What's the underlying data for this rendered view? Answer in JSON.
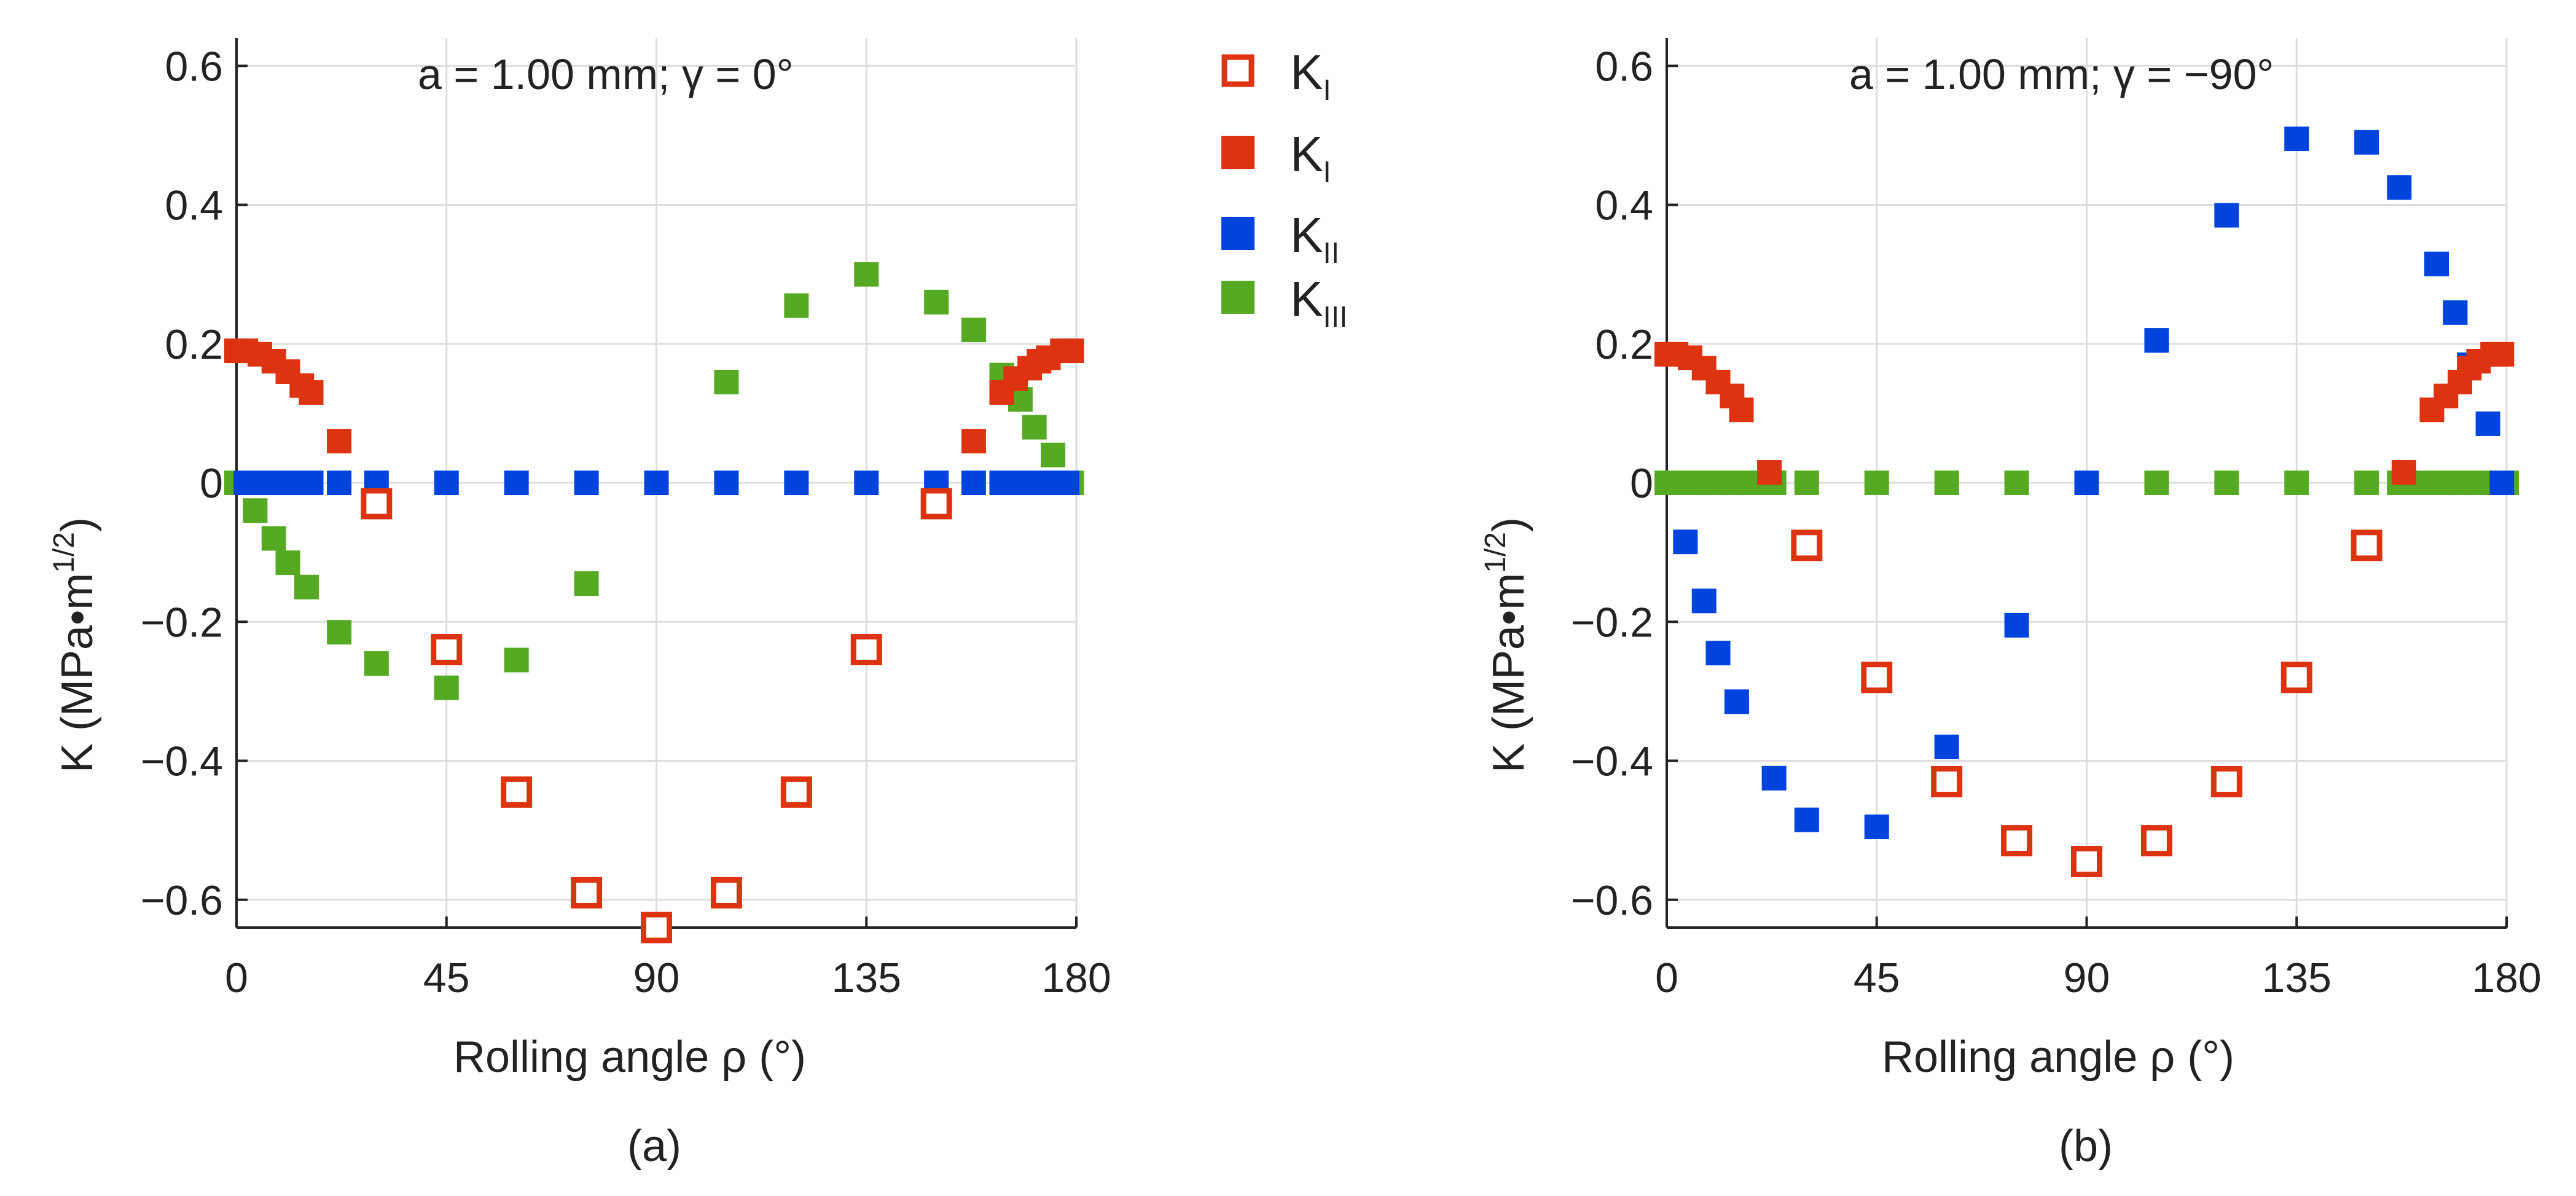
{
  "figure": {
    "panel_labels": [
      "(a)",
      "(b)"
    ]
  },
  "colors": {
    "KI_open": "#dd3311",
    "KI_filled": "#dd3311",
    "KII": "#0044dd",
    "KIII": "#55aa22",
    "grid": "#dddddd",
    "axis": "#222222"
  },
  "legend": {
    "items": [
      {
        "base": "K",
        "sub": "I",
        "marker": "open-square",
        "color": "#dd3311",
        "icon": "open-square-icon"
      },
      {
        "base": "K",
        "sub": "I",
        "marker": "filled-square",
        "color": "#dd3311",
        "icon": "red-square-icon"
      },
      {
        "base": "K",
        "sub": "II",
        "marker": "filled-square",
        "color": "#0044dd",
        "icon": "blue-square-icon"
      },
      {
        "base": "K",
        "sub": "III",
        "marker": "filled-square",
        "color": "#55aa22",
        "icon": "green-square-icon"
      }
    ]
  },
  "chart_data": [
    {
      "type": "scatter",
      "panel": "(a)",
      "annotation": "a = 1.00 mm; γ  = 0°",
      "xlabel": "Rolling angle ρ  (°)",
      "ylabel": "K (MPa•m",
      "ylabel_sup": "1/2",
      "ylabel_end": ")",
      "xlim": [
        0,
        180
      ],
      "ylim": [
        -0.64,
        0.64
      ],
      "xticks": [
        0,
        45,
        90,
        135,
        180
      ],
      "xtick_labels": [
        "0",
        "45",
        "90",
        "135",
        "180"
      ],
      "yticks": [
        0.6,
        0.4,
        0.2,
        0,
        -0.2,
        -0.4,
        -0.6
      ],
      "ytick_labels": [
        "0.6",
        "0.4",
        "0.2",
        "0",
        "−0.2",
        "−0.4",
        "−0.6"
      ],
      "grid": true,
      "series": [
        {
          "name": "KI open",
          "marker": "open",
          "color": "#dd3311",
          "x": [
            30,
            45,
            60,
            75,
            90,
            105,
            120,
            135,
            150
          ],
          "y": [
            -0.03,
            -0.24,
            -0.445,
            -0.59,
            -0.64,
            -0.59,
            -0.445,
            -0.24,
            -0.03
          ]
        },
        {
          "name": "KI filled",
          "marker": "filled",
          "color": "#dd3311",
          "x": [
            0,
            2,
            5,
            8,
            11,
            14,
            16,
            22,
            158,
            164,
            167,
            170,
            172,
            174,
            177,
            179
          ],
          "y": [
            0.19,
            0.19,
            0.185,
            0.175,
            0.16,
            0.14,
            0.13,
            0.06,
            0.06,
            0.13,
            0.15,
            0.165,
            0.175,
            0.18,
            0.19,
            0.19
          ]
        },
        {
          "name": "KII",
          "marker": "filled",
          "color": "#0044dd",
          "x": [
            2,
            5,
            8,
            11,
            14,
            16,
            22,
            30,
            45,
            60,
            75,
            90,
            105,
            120,
            135,
            150,
            158,
            164,
            167,
            170,
            172,
            175,
            178
          ],
          "y": [
            0,
            0,
            0,
            0,
            0,
            0,
            0,
            0,
            0,
            0,
            0,
            0,
            0,
            0,
            0,
            0,
            0,
            0,
            0,
            0,
            0,
            0,
            0
          ]
        },
        {
          "name": "KIII",
          "marker": "filled",
          "color": "#55aa22",
          "x": [
            0,
            4,
            8,
            11,
            15,
            22,
            30,
            45,
            60,
            75,
            90,
            105,
            120,
            135,
            150,
            158,
            164,
            168,
            171,
            175,
            179
          ],
          "y": [
            0,
            -0.04,
            -0.08,
            -0.115,
            -0.15,
            -0.215,
            -0.26,
            -0.295,
            -0.255,
            -0.145,
            0,
            0.145,
            0.255,
            0.3,
            0.26,
            0.22,
            0.155,
            0.12,
            0.08,
            0.04,
            0
          ]
        }
      ]
    },
    {
      "type": "scatter",
      "panel": "(b)",
      "annotation": "a = 1.00 mm; γ  = −90°",
      "xlabel": "Rolling angle ρ  (°)",
      "ylabel": "K (MPa•m",
      "ylabel_sup": "1/2",
      "ylabel_end": ")",
      "xlim": [
        0,
        180
      ],
      "ylim": [
        -0.64,
        0.64
      ],
      "xticks": [
        0,
        45,
        90,
        135,
        180
      ],
      "xtick_labels": [
        "0",
        "45",
        "90",
        "135",
        "180"
      ],
      "yticks": [
        0.6,
        0.4,
        0.2,
        0,
        -0.2,
        -0.4,
        -0.6
      ],
      "ytick_labels": [
        "0.6",
        "0.4",
        "0.2",
        "0",
        "−0.2",
        "−0.4",
        "−0.6"
      ],
      "grid": true,
      "series": [
        {
          "name": "KI open",
          "marker": "open",
          "color": "#dd3311",
          "x": [
            30,
            45,
            60,
            75,
            90,
            105,
            120,
            135,
            150
          ],
          "y": [
            -0.09,
            -0.28,
            -0.43,
            -0.515,
            -0.545,
            -0.515,
            -0.43,
            -0.28,
            -0.09
          ]
        },
        {
          "name": "KI filled",
          "marker": "filled",
          "color": "#dd3311",
          "x": [
            0,
            2,
            5,
            8,
            11,
            14,
            16,
            22,
            158,
            164,
            167,
            170,
            172,
            174,
            177,
            179
          ],
          "y": [
            0.185,
            0.185,
            0.18,
            0.165,
            0.145,
            0.125,
            0.105,
            0.015,
            0.015,
            0.105,
            0.125,
            0.145,
            0.165,
            0.175,
            0.185,
            0.185
          ]
        },
        {
          "name": "KII",
          "marker": "filled",
          "color": "#0044dd",
          "x": [
            4,
            8,
            11,
            15,
            23,
            30,
            45,
            60,
            75,
            90,
            105,
            120,
            135,
            150,
            157,
            165,
            169,
            172,
            176,
            179
          ],
          "y": [
            -0.085,
            -0.17,
            -0.245,
            -0.315,
            -0.425,
            -0.485,
            -0.495,
            -0.38,
            -0.205,
            0,
            0.205,
            0.385,
            0.495,
            0.49,
            0.425,
            0.315,
            0.245,
            0.17,
            0.085,
            0
          ]
        },
        {
          "name": "KIII",
          "marker": "filled",
          "color": "#55aa22",
          "x": [
            0,
            3,
            6,
            9,
            12,
            15,
            18,
            23,
            30,
            45,
            60,
            75,
            90,
            105,
            120,
            135,
            150,
            157,
            162,
            165,
            168,
            171,
            174,
            177,
            180
          ],
          "y": [
            0,
            0,
            0,
            0,
            0,
            0,
            0,
            0,
            0,
            0,
            0,
            0,
            0,
            0,
            0,
            0,
            0,
            0,
            0,
            0,
            0,
            0,
            0,
            0,
            0
          ]
        }
      ]
    }
  ]
}
